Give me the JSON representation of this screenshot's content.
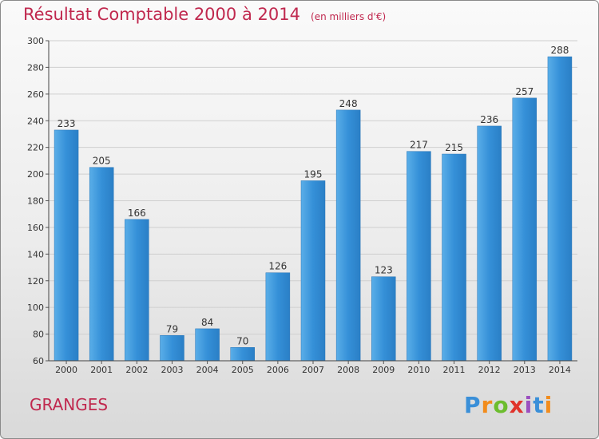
{
  "chart_data": {
    "type": "bar",
    "title": "Résultat Comptable 2000 à 2014",
    "subtitle": "(en milliers d'€)",
    "categories": [
      "2000",
      "2001",
      "2002",
      "2003",
      "2004",
      "2005",
      "2006",
      "2007",
      "2008",
      "2009",
      "2010",
      "2011",
      "2012",
      "2013",
      "2014"
    ],
    "values": [
      233,
      205,
      166,
      79,
      84,
      70,
      126,
      195,
      248,
      123,
      217,
      215,
      236,
      257,
      288
    ],
    "ylim": [
      60,
      300
    ],
    "yticks": [
      60,
      80,
      100,
      120,
      140,
      160,
      180,
      200,
      220,
      240,
      260,
      280,
      300
    ],
    "grid": true,
    "bar_color": "#2f86cf",
    "title_color": "#c0284e"
  },
  "footer": {
    "commune": "GRANGES",
    "logo": [
      "P",
      "r",
      "o",
      "x",
      "i",
      "t",
      "i"
    ]
  }
}
